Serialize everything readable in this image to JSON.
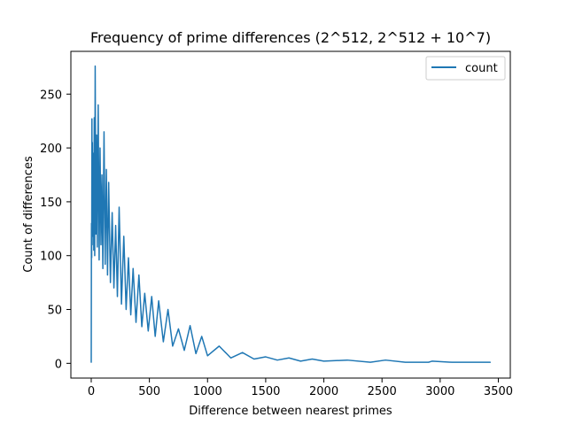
{
  "chart_data": {
    "type": "line",
    "title": "Frequency of prime differences (2^512, 2^512 + 10^7)",
    "xlabel": "Difference between nearest primes",
    "ylabel": "Count of differences",
    "xlim": [
      -175,
      3603
    ],
    "ylim": [
      -13.7,
      289.7
    ],
    "x_ticks": [
      0,
      500,
      1000,
      1500,
      2000,
      2500,
      3000,
      3500
    ],
    "y_ticks": [
      0,
      50,
      100,
      150,
      200,
      250
    ],
    "x_tick_labels": [
      "0",
      "500",
      "1000",
      "1500",
      "2000",
      "2500",
      "3000",
      "3500"
    ],
    "y_tick_labels": [
      "0",
      "50",
      "100",
      "150",
      "200",
      "250"
    ],
    "grid": false,
    "legend": {
      "position": "top-right",
      "entries": [
        "count"
      ]
    },
    "series": [
      {
        "name": "count",
        "color": "#1f77b4",
        "x": [
          0,
          2,
          4,
          6,
          8,
          10,
          14,
          18,
          22,
          26,
          30,
          34,
          40,
          46,
          52,
          60,
          68,
          76,
          84,
          92,
          100,
          110,
          120,
          130,
          140,
          150,
          165,
          180,
          195,
          210,
          225,
          240,
          260,
          280,
          300,
          320,
          340,
          360,
          385,
          410,
          435,
          460,
          490,
          520,
          550,
          580,
          620,
          660,
          700,
          750,
          800,
          850,
          900,
          950,
          1000,
          1100,
          1200,
          1300,
          1400,
          1500,
          1600,
          1700,
          1800,
          1900,
          2000,
          2200,
          2400,
          2530,
          2700,
          2900,
          2930,
          3100,
          3300,
          3430
        ],
        "y": [
          1,
          130,
          98,
          227,
          110,
          205,
          118,
          195,
          105,
          228,
          100,
          276,
          120,
          212,
          108,
          240,
          96,
          200,
          110,
          175,
          88,
          215,
          92,
          180,
          82,
          168,
          75,
          140,
          70,
          128,
          62,
          145,
          55,
          118,
          50,
          98,
          45,
          88,
          38,
          82,
          34,
          65,
          30,
          62,
          25,
          58,
          20,
          50,
          16,
          32,
          12,
          35,
          9,
          25,
          7,
          16,
          5,
          10,
          4,
          6,
          3,
          5,
          2,
          4,
          2,
          3,
          1,
          3,
          1,
          1,
          2,
          1,
          1,
          1
        ]
      }
    ]
  }
}
